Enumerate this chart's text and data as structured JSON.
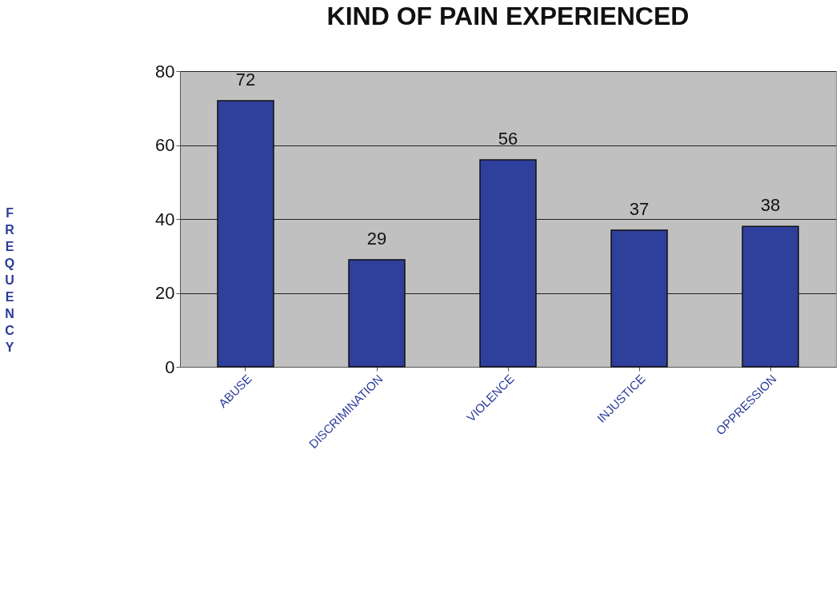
{
  "chart_data": {
    "type": "bar",
    "title": "KIND OF PAIN EXPERIENCED",
    "ylabel": "FREQUENCY",
    "categories": [
      "ABUSE",
      "DISCRIMINATION",
      "VIOLENCE",
      "INJUSTICE",
      "OPPRESSION"
    ],
    "values": [
      72,
      29,
      56,
      37,
      38
    ],
    "color": "#2f3f9c",
    "ylim": [
      0,
      80
    ],
    "yticks": [
      0,
      20,
      40,
      60,
      80
    ],
    "grid": "y",
    "data_labels": true
  }
}
